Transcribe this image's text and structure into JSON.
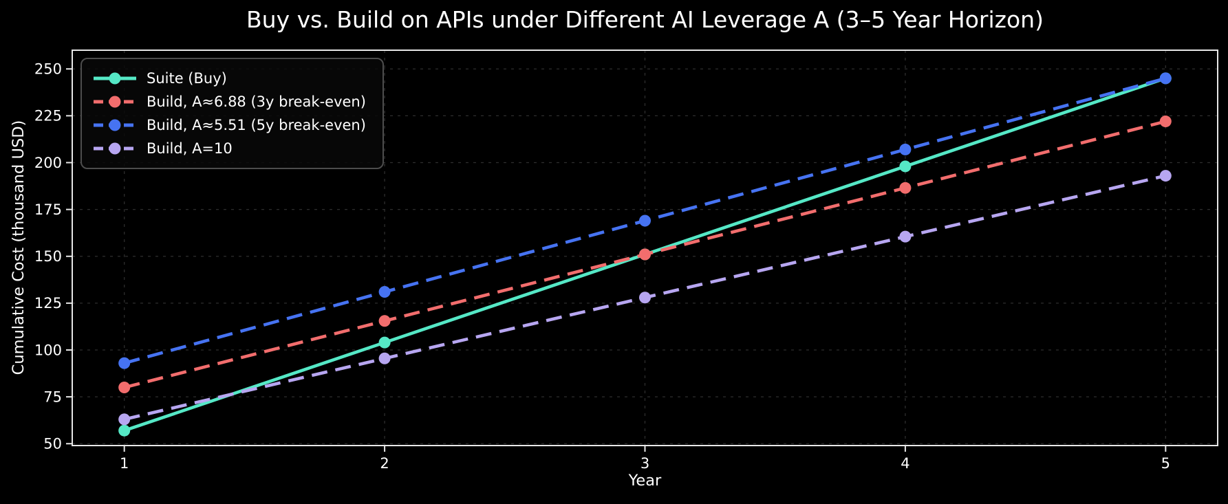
{
  "chart_data": {
    "type": "line",
    "title": "Buy vs. Build on APIs under Different AI Leverage A (3–5 Year Horizon)",
    "xlabel": "Year",
    "ylabel": "Cumulative Cost (thousand USD)",
    "x": [
      1,
      2,
      3,
      4,
      5
    ],
    "xticks": [
      1,
      2,
      3,
      4,
      5
    ],
    "yticks": [
      50,
      75,
      100,
      125,
      150,
      175,
      200,
      225,
      250
    ],
    "xlim": [
      0.8,
      5.2
    ],
    "ylim": [
      49,
      260
    ],
    "grid": true,
    "legend_position": "upper-left",
    "series": [
      {
        "name": "Suite (Buy)",
        "values": [
          57,
          104,
          151,
          198,
          245
        ],
        "color": "#55E8C6",
        "style": "solid"
      },
      {
        "name": "Build, A≈6.88 (3y break-even)",
        "values": [
          80,
          115.5,
          151,
          186.5,
          222
        ],
        "color": "#F26D6D",
        "style": "dashed"
      },
      {
        "name": "Build, A≈5.51 (5y break-even)",
        "values": [
          93,
          131,
          169,
          207,
          245
        ],
        "color": "#4673F2",
        "style": "dashed"
      },
      {
        "name": "Build, A=10",
        "values": [
          63,
          95.5,
          128,
          160.5,
          193
        ],
        "color": "#B7A6F1",
        "style": "dashed"
      }
    ],
    "colors": {
      "background": "#000000",
      "text": "#ffffff",
      "grid": "#2e2e2e",
      "spine": "#e8e8e8",
      "legend_border": "#4d4d4d"
    }
  }
}
